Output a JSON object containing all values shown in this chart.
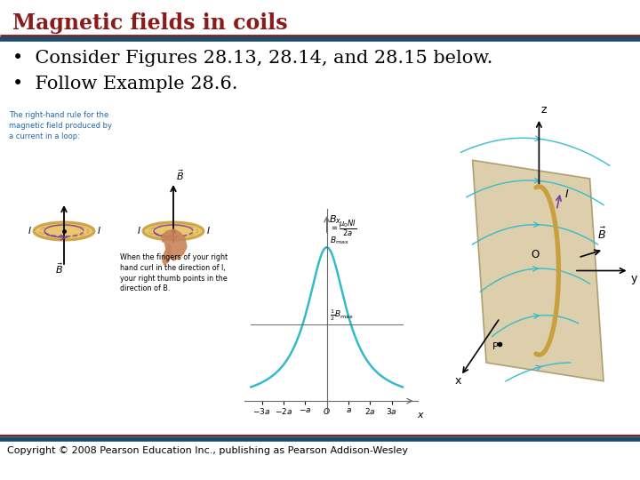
{
  "title": "Magnetic fields in coils",
  "title_color": "#8B1A1A",
  "title_fontsize": 17,
  "bullet1": "Consider Figures 28.13, 28.14, and 28.15 below.",
  "bullet2": "Follow Example 28.6.",
  "bullet_fontsize": 15,
  "header_line_color": "#1C4E6B",
  "header_line_color2": "#8B1A1A",
  "footer_line_color": "#1C4E6B",
  "footer_text": "Copyright © 2008 Pearson Education Inc., publishing as Pearson Addison-Wesley",
  "footer_fontsize": 8,
  "bg_color": "#FFFFFF",
  "fig1_text_color": "#2266AA",
  "fig1_small_text": "The right-hand rule for the\nmagnetic field produced by\na current in a loop:",
  "fig1_small_text2": "When the fingers of your right\nhand curl in the direction of I,\nyour right thumb points in the\ndirection of B.",
  "coil_color": "#C8A040",
  "arrow_color": "#7B3F9E",
  "hand_color": "#C8845A",
  "fig2_curve_color": "#33BBCC",
  "fig3_curve_color": "#33BBCC",
  "fig3_coil_color": "#C8A040",
  "fig3_plane_color": "#D4BF90"
}
